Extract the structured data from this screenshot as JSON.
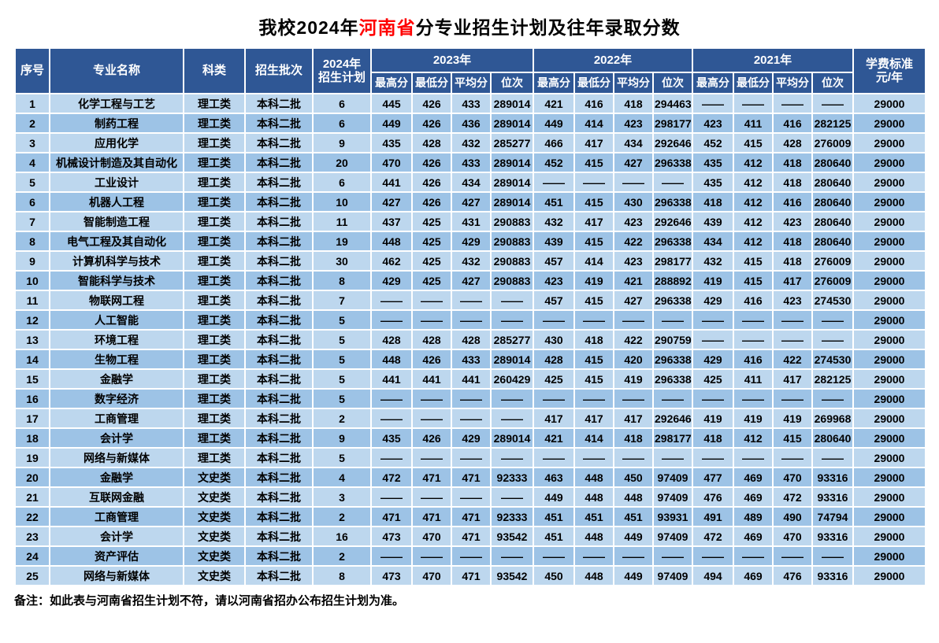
{
  "title": {
    "part1": "我校2024年",
    "highlight": "河南省",
    "part2": "分专业招生计划及往年录取分数"
  },
  "colors": {
    "header_bg": "#2F5795",
    "row_light": "#BDD7EE",
    "row_dark": "#9DC3E6",
    "border": "#FFFFFF",
    "title_highlight": "#FF0000",
    "header_text": "#FFFFFF",
    "body_text": "#000000"
  },
  "header": {
    "no": "序号",
    "major": "专业名称",
    "category": "科类",
    "batch": "招生批次",
    "plan_line1": "2024年",
    "plan_line2": "招生计划",
    "years": [
      "2023年",
      "2022年",
      "2021年"
    ],
    "sub_headers": [
      "最高分",
      "最低分",
      "平均分",
      "位次"
    ],
    "tuition_line1": "学费标准",
    "tuition_line2": "元/年"
  },
  "empty_marker": "——",
  "note": "备注：如此表与河南省招生计划不符，请以河南省招办公布招生计划为准。",
  "rows": [
    {
      "no": "1",
      "major": "化学工程与工艺",
      "category": "理工类",
      "batch": "本科二批",
      "plan": "6",
      "y2023": [
        "445",
        "426",
        "433",
        "289014"
      ],
      "y2022": [
        "421",
        "416",
        "418",
        "294463"
      ],
      "y2021": [
        "——",
        "——",
        "——",
        "——"
      ],
      "tuition": "29000"
    },
    {
      "no": "2",
      "major": "制药工程",
      "category": "理工类",
      "batch": "本科二批",
      "plan": "6",
      "y2023": [
        "449",
        "426",
        "436",
        "289014"
      ],
      "y2022": [
        "449",
        "414",
        "423",
        "298177"
      ],
      "y2021": [
        "423",
        "411",
        "416",
        "282125"
      ],
      "tuition": "29000"
    },
    {
      "no": "3",
      "major": "应用化学",
      "category": "理工类",
      "batch": "本科二批",
      "plan": "9",
      "y2023": [
        "435",
        "428",
        "432",
        "285277"
      ],
      "y2022": [
        "466",
        "417",
        "434",
        "292646"
      ],
      "y2021": [
        "452",
        "415",
        "428",
        "276009"
      ],
      "tuition": "29000"
    },
    {
      "no": "4",
      "major": "机械设计制造及其自动化",
      "category": "理工类",
      "batch": "本科二批",
      "plan": "20",
      "y2023": [
        "470",
        "426",
        "433",
        "289014"
      ],
      "y2022": [
        "452",
        "415",
        "427",
        "296338"
      ],
      "y2021": [
        "435",
        "412",
        "418",
        "280640"
      ],
      "tuition": "29000"
    },
    {
      "no": "5",
      "major": "工业设计",
      "category": "理工类",
      "batch": "本科二批",
      "plan": "6",
      "y2023": [
        "441",
        "426",
        "434",
        "289014"
      ],
      "y2022": [
        "——",
        "——",
        "——",
        "——"
      ],
      "y2021": [
        "435",
        "412",
        "418",
        "280640"
      ],
      "tuition": "29000"
    },
    {
      "no": "6",
      "major": "机器人工程",
      "category": "理工类",
      "batch": "本科二批",
      "plan": "10",
      "y2023": [
        "427",
        "426",
        "427",
        "289014"
      ],
      "y2022": [
        "451",
        "415",
        "430",
        "296338"
      ],
      "y2021": [
        "418",
        "412",
        "416",
        "280640"
      ],
      "tuition": "29000"
    },
    {
      "no": "7",
      "major": "智能制造工程",
      "category": "理工类",
      "batch": "本科二批",
      "plan": "11",
      "y2023": [
        "437",
        "425",
        "431",
        "290883"
      ],
      "y2022": [
        "432",
        "417",
        "423",
        "292646"
      ],
      "y2021": [
        "439",
        "412",
        "423",
        "280640"
      ],
      "tuition": "29000"
    },
    {
      "no": "8",
      "major": "电气工程及其自动化",
      "category": "理工类",
      "batch": "本科二批",
      "plan": "19",
      "y2023": [
        "448",
        "425",
        "429",
        "290883"
      ],
      "y2022": [
        "439",
        "415",
        "422",
        "296338"
      ],
      "y2021": [
        "434",
        "412",
        "418",
        "280640"
      ],
      "tuition": "29000"
    },
    {
      "no": "9",
      "major": "计算机科学与技术",
      "category": "理工类",
      "batch": "本科二批",
      "plan": "30",
      "y2023": [
        "462",
        "425",
        "432",
        "290883"
      ],
      "y2022": [
        "457",
        "414",
        "423",
        "298177"
      ],
      "y2021": [
        "432",
        "415",
        "418",
        "276009"
      ],
      "tuition": "29000"
    },
    {
      "no": "10",
      "major": "智能科学与技术",
      "category": "理工类",
      "batch": "本科二批",
      "plan": "8",
      "y2023": [
        "429",
        "425",
        "427",
        "290883"
      ],
      "y2022": [
        "423",
        "419",
        "421",
        "288892"
      ],
      "y2021": [
        "419",
        "415",
        "417",
        "276009"
      ],
      "tuition": "29000"
    },
    {
      "no": "11",
      "major": "物联网工程",
      "category": "理工类",
      "batch": "本科二批",
      "plan": "7",
      "y2023": [
        "——",
        "——",
        "——",
        "——"
      ],
      "y2022": [
        "457",
        "415",
        "427",
        "296338"
      ],
      "y2021": [
        "429",
        "416",
        "423",
        "274530"
      ],
      "tuition": "29000"
    },
    {
      "no": "12",
      "major": "人工智能",
      "category": "理工类",
      "batch": "本科二批",
      "plan": "5",
      "y2023": [
        "——",
        "——",
        "——",
        "——"
      ],
      "y2022": [
        "——",
        "——",
        "——",
        "——"
      ],
      "y2021": [
        "——",
        "——",
        "——",
        "——"
      ],
      "tuition": "29000"
    },
    {
      "no": "13",
      "major": "环境工程",
      "category": "理工类",
      "batch": "本科二批",
      "plan": "5",
      "y2023": [
        "428",
        "428",
        "428",
        "285277"
      ],
      "y2022": [
        "430",
        "418",
        "422",
        "290759"
      ],
      "y2021": [
        "——",
        "——",
        "——",
        "——"
      ],
      "tuition": "29000"
    },
    {
      "no": "14",
      "major": "生物工程",
      "category": "理工类",
      "batch": "本科二批",
      "plan": "5",
      "y2023": [
        "448",
        "426",
        "433",
        "289014"
      ],
      "y2022": [
        "428",
        "415",
        "420",
        "296338"
      ],
      "y2021": [
        "429",
        "416",
        "422",
        "274530"
      ],
      "tuition": "29000"
    },
    {
      "no": "15",
      "major": "金融学",
      "category": "理工类",
      "batch": "本科二批",
      "plan": "5",
      "y2023": [
        "441",
        "441",
        "441",
        "260429"
      ],
      "y2022": [
        "425",
        "415",
        "419",
        "296338"
      ],
      "y2021": [
        "425",
        "411",
        "417",
        "282125"
      ],
      "tuition": "29000"
    },
    {
      "no": "16",
      "major": "数字经济",
      "category": "理工类",
      "batch": "本科二批",
      "plan": "5",
      "y2023": [
        "——",
        "——",
        "——",
        "——"
      ],
      "y2022": [
        "——",
        "——",
        "——",
        "——"
      ],
      "y2021": [
        "——",
        "——",
        "——",
        "——"
      ],
      "tuition": "29000"
    },
    {
      "no": "17",
      "major": "工商管理",
      "category": "理工类",
      "batch": "本科二批",
      "plan": "2",
      "y2023": [
        "——",
        "——",
        "——",
        "——"
      ],
      "y2022": [
        "417",
        "417",
        "417",
        "292646"
      ],
      "y2021": [
        "419",
        "419",
        "419",
        "269968"
      ],
      "tuition": "29000"
    },
    {
      "no": "18",
      "major": "会计学",
      "category": "理工类",
      "batch": "本科二批",
      "plan": "9",
      "y2023": [
        "435",
        "426",
        "429",
        "289014"
      ],
      "y2022": [
        "421",
        "414",
        "418",
        "298177"
      ],
      "y2021": [
        "418",
        "412",
        "415",
        "280640"
      ],
      "tuition": "29000"
    },
    {
      "no": "19",
      "major": "网络与新媒体",
      "category": "理工类",
      "batch": "本科二批",
      "plan": "5",
      "y2023": [
        "——",
        "——",
        "——",
        "——"
      ],
      "y2022": [
        "——",
        "——",
        "——",
        "——"
      ],
      "y2021": [
        "——",
        "——",
        "——",
        "——"
      ],
      "tuition": "29000"
    },
    {
      "no": "20",
      "major": "金融学",
      "category": "文史类",
      "batch": "本科二批",
      "plan": "4",
      "y2023": [
        "472",
        "471",
        "471",
        "92333"
      ],
      "y2022": [
        "463",
        "448",
        "450",
        "97409"
      ],
      "y2021": [
        "477",
        "469",
        "470",
        "93316"
      ],
      "tuition": "29000"
    },
    {
      "no": "21",
      "major": "互联网金融",
      "category": "文史类",
      "batch": "本科二批",
      "plan": "3",
      "y2023": [
        "——",
        "——",
        "——",
        "——"
      ],
      "y2022": [
        "449",
        "448",
        "448",
        "97409"
      ],
      "y2021": [
        "476",
        "469",
        "472",
        "93316"
      ],
      "tuition": "29000"
    },
    {
      "no": "22",
      "major": "工商管理",
      "category": "文史类",
      "batch": "本科二批",
      "plan": "2",
      "y2023": [
        "471",
        "471",
        "471",
        "92333"
      ],
      "y2022": [
        "451",
        "451",
        "451",
        "93931"
      ],
      "y2021": [
        "491",
        "489",
        "490",
        "74794"
      ],
      "tuition": "29000"
    },
    {
      "no": "23",
      "major": "会计学",
      "category": "文史类",
      "batch": "本科二批",
      "plan": "16",
      "y2023": [
        "473",
        "470",
        "471",
        "93542"
      ],
      "y2022": [
        "451",
        "448",
        "449",
        "97409"
      ],
      "y2021": [
        "472",
        "469",
        "470",
        "93316"
      ],
      "tuition": "29000"
    },
    {
      "no": "24",
      "major": "资产评估",
      "category": "文史类",
      "batch": "本科二批",
      "plan": "2",
      "y2023": [
        "——",
        "——",
        "——",
        "——"
      ],
      "y2022": [
        "——",
        "——",
        "——",
        "——"
      ],
      "y2021": [
        "——",
        "——",
        "——",
        "——"
      ],
      "tuition": "29000"
    },
    {
      "no": "25",
      "major": "网络与新媒体",
      "category": "文史类",
      "batch": "本科二批",
      "plan": "8",
      "y2023": [
        "473",
        "470",
        "471",
        "93542"
      ],
      "y2022": [
        "450",
        "448",
        "449",
        "97409"
      ],
      "y2021": [
        "494",
        "469",
        "476",
        "93316"
      ],
      "tuition": "29000"
    }
  ]
}
